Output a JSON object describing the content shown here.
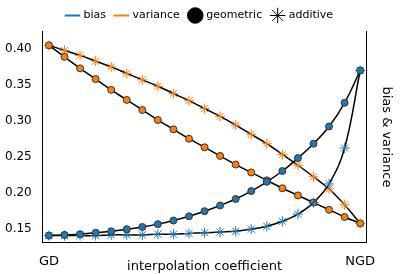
{
  "chart_data": {
    "type": "line",
    "x_label": "interpolation coefficient",
    "y_label": "bias & variance",
    "x": [
      0,
      0.05,
      0.1,
      0.15,
      0.2,
      0.25,
      0.3,
      0.35,
      0.4,
      0.45,
      0.5,
      0.55,
      0.6,
      0.65,
      0.7,
      0.75,
      0.8,
      0.85,
      0.9,
      0.95,
      1
    ],
    "xlim": [
      -0.02,
      1.02
    ],
    "xticks": [
      {
        "value": 0,
        "label": "GD"
      },
      {
        "value": 1,
        "label": "NGD"
      }
    ],
    "ylim": [
      0.13,
      0.425
    ],
    "yticks": [
      0.15,
      {
        "value": 0.2,
        "label": "0.20"
      },
      0.25,
      {
        "value": 0.3,
        "label": "0.30"
      },
      0.35,
      {
        "value": 0.4,
        "label": "0.40"
      }
    ],
    "grid": false,
    "legend": "top",
    "markers": [
      {
        "marker": "circle",
        "name": "geometric"
      },
      {
        "marker": "star",
        "name": "additive"
      }
    ],
    "series": [
      {
        "name": "bias",
        "color": "#1f77b4",
        "marker": "circle",
        "values": [
          0.14,
          0.141,
          0.142,
          0.144,
          0.146,
          0.149,
          0.152,
          0.156,
          0.161,
          0.167,
          0.174,
          0.182,
          0.191,
          0.202,
          0.215,
          0.23,
          0.248,
          0.268,
          0.292,
          0.325,
          0.37
        ]
      },
      {
        "name": "bias",
        "color": "#1f77b4",
        "marker": "star",
        "values": [
          0.14,
          0.14,
          0.14,
          0.14,
          0.141,
          0.141,
          0.141,
          0.142,
          0.142,
          0.143,
          0.144,
          0.145,
          0.146,
          0.149,
          0.153,
          0.16,
          0.17,
          0.186,
          0.212,
          0.262,
          0.37
        ]
      },
      {
        "name": "variance",
        "color": "#ff7f0e",
        "marker": "circle",
        "values": [
          0.405,
          0.389,
          0.373,
          0.358,
          0.343,
          0.329,
          0.315,
          0.301,
          0.288,
          0.275,
          0.263,
          0.251,
          0.239,
          0.228,
          0.217,
          0.206,
          0.196,
          0.186,
          0.176,
          0.166,
          0.157
        ]
      },
      {
        "name": "variance",
        "color": "#ff7f0e",
        "marker": "star",
        "values": [
          0.405,
          0.398,
          0.391,
          0.383,
          0.375,
          0.366,
          0.357,
          0.348,
          0.338,
          0.328,
          0.317,
          0.306,
          0.294,
          0.281,
          0.268,
          0.253,
          0.238,
          0.222,
          0.205,
          0.183,
          0.157
        ]
      }
    ]
  }
}
